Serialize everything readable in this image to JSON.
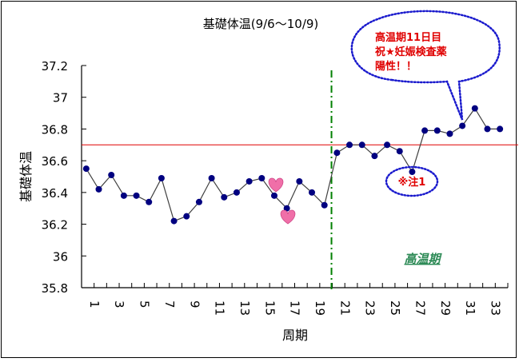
{
  "chart_data": {
    "type": "line",
    "title": "基礎体温(9/6〜10/9)",
    "xlabel": "周期",
    "ylabel": "基礎体温",
    "ylim": [
      35.8,
      37.2
    ],
    "yticks": [
      35.8,
      36,
      36.2,
      36.4,
      36.6,
      36.8,
      37,
      37.2
    ],
    "ytick_labels": [
      "35.8",
      "36",
      "36.2",
      "36.4",
      "36.6",
      "36.8",
      "37",
      "37.2"
    ],
    "x": [
      1,
      2,
      3,
      4,
      5,
      6,
      7,
      8,
      9,
      10,
      11,
      12,
      13,
      14,
      15,
      16,
      17,
      18,
      19,
      20,
      21,
      22,
      23,
      24,
      25,
      26,
      27,
      28,
      29,
      30,
      31,
      32,
      33,
      34
    ],
    "xtick_labels": [
      "1",
      "3",
      "5",
      "7",
      "9",
      "11",
      "13",
      "15",
      "17",
      "19",
      "21",
      "23",
      "25",
      "27",
      "29",
      "31",
      "33"
    ],
    "series": [
      {
        "name": "基礎体温",
        "color": "#000080",
        "line_color": "#404040",
        "values": [
          36.55,
          36.42,
          36.51,
          36.38,
          36.38,
          36.34,
          36.49,
          36.22,
          36.25,
          36.34,
          36.49,
          36.37,
          36.4,
          36.47,
          36.49,
          36.38,
          36.3,
          36.47,
          36.4,
          36.32,
          36.65,
          36.7,
          36.7,
          36.63,
          36.7,
          36.66,
          36.53,
          36.79,
          36.79,
          36.77,
          36.82,
          36.93,
          36.8,
          36.8
        ]
      }
    ],
    "reference_line": {
      "y": 36.7,
      "color": "#e00000"
    },
    "phase_divider": {
      "x_between": [
        20,
        21
      ],
      "color": "#008000",
      "style": "dash-dot"
    },
    "grid": false,
    "legend": null,
    "annotations": [
      {
        "type": "speech-bubble",
        "lines": [
          "高温期11日目",
          "祝★妊娠検査薬",
          "陽性！！"
        ],
        "points_to_day": 31,
        "color": "#e00000",
        "border_color": "#1a1acd"
      },
      {
        "type": "oval-note",
        "text": "※注1",
        "near_day": 27,
        "color": "#e00000",
        "border_color": "#1a1acd"
      },
      {
        "type": "phase-label",
        "text": "高温期",
        "color": "#2e8b57"
      },
      {
        "type": "heart",
        "near_day": 16
      },
      {
        "type": "heart",
        "near_day": 17
      }
    ]
  },
  "colors": {
    "marker": "#000080",
    "line": "#404040",
    "reference": "#e00000",
    "divider": "#008000",
    "bubble_border": "#1a1acd",
    "note_text": "#e00000",
    "phase_label": "#2e8b57",
    "heart": "#f06fa8"
  }
}
